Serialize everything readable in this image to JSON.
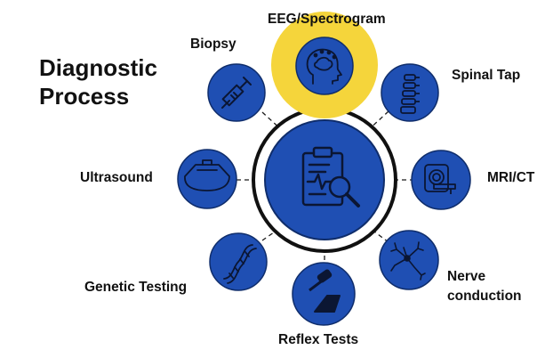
{
  "title": {
    "line1": "Diagnostic",
    "line2": "Process"
  },
  "colors": {
    "node_fill": "#1f4fb3",
    "node_stroke": "#0f2d6b",
    "highlight": "#f5d53b",
    "icon": "#0b1633"
  },
  "center": {
    "icon": "clipboard-magnifier-icon"
  },
  "nodes": [
    {
      "label": "EEG/Spectrogram",
      "icon": "head-brain-icon",
      "highlighted": true
    },
    {
      "label": "Spinal Tap",
      "icon": "spine-icon",
      "highlighted": false
    },
    {
      "label": "MRI/CT",
      "icon": "mri-scanner-icon",
      "highlighted": false
    },
    {
      "label": "Nerve",
      "label2": "conduction",
      "icon": "neuron-icon",
      "highlighted": false
    },
    {
      "label": "Reflex Tests",
      "icon": "reflex-hammer-icon",
      "highlighted": false
    },
    {
      "label": "Genetic Testing",
      "icon": "dna-icon",
      "highlighted": false
    },
    {
      "label": "Ultrasound",
      "icon": "ultrasound-icon",
      "highlighted": false
    },
    {
      "label": "Biopsy",
      "icon": "syringe-icon",
      "highlighted": false
    }
  ]
}
